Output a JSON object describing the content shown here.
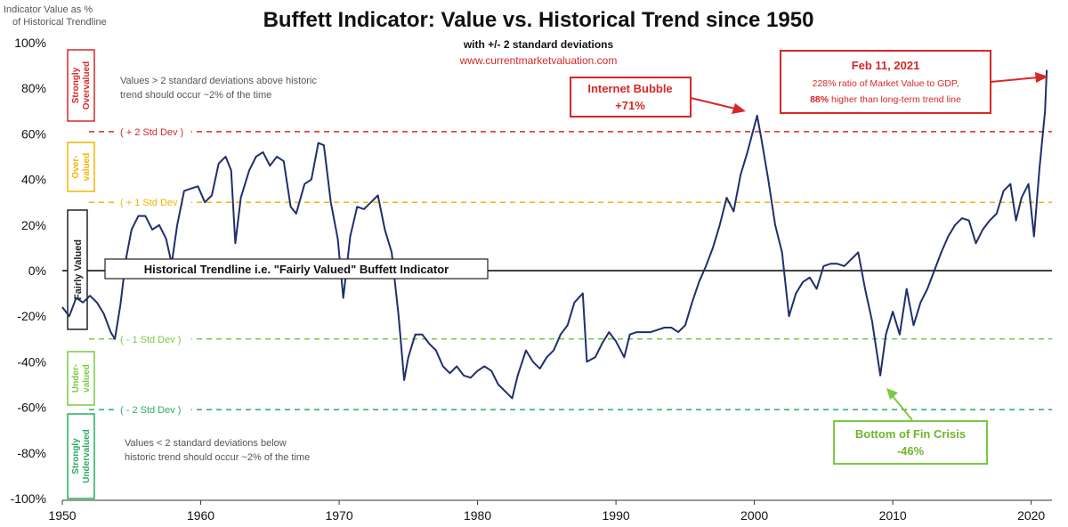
{
  "chart_data": {
    "type": "line",
    "title": "Buffett Indicator: Value vs. Historical Trend since 1950",
    "subtitle": "with +/- 2 standard deviations",
    "source": "www.currentmarketvaluation.com",
    "ylabel_line1": "Indicator Value as %",
    "ylabel_line2": "of Historical Trendline",
    "xlim": [
      1950,
      2021.5
    ],
    "ylim": [
      -100,
      100
    ],
    "x_ticks": [
      1950,
      1960,
      1970,
      1980,
      1990,
      2000,
      2010,
      2020
    ],
    "y_ticks": [
      {
        "value": 100,
        "label": "100%"
      },
      {
        "value": 80,
        "label": "80%"
      },
      {
        "value": 60,
        "label": "60%"
      },
      {
        "value": 40,
        "label": "40%"
      },
      {
        "value": 20,
        "label": "20%"
      },
      {
        "value": 0,
        "label": "0%"
      },
      {
        "value": -20,
        "label": "-20%"
      },
      {
        "value": -40,
        "label": "-40%"
      },
      {
        "value": -60,
        "label": "-60%"
      },
      {
        "value": -80,
        "label": "-80%"
      },
      {
        "value": -100,
        "label": "-100%"
      }
    ],
    "series": [
      {
        "color": "#1f2f6e",
        "points": [
          [
            1950.0,
            -16
          ],
          [
            1950.5,
            -20
          ],
          [
            1951.0,
            -12
          ],
          [
            1951.5,
            -14
          ],
          [
            1952.0,
            -11
          ],
          [
            1952.5,
            -14
          ],
          [
            1953.0,
            -19
          ],
          [
            1953.5,
            -27
          ],
          [
            1953.8,
            -30
          ],
          [
            1954.2,
            -15
          ],
          [
            1954.6,
            5
          ],
          [
            1955.0,
            18
          ],
          [
            1955.5,
            24
          ],
          [
            1956.0,
            24
          ],
          [
            1956.5,
            18
          ],
          [
            1957.0,
            20
          ],
          [
            1957.5,
            14
          ],
          [
            1957.9,
            3
          ],
          [
            1958.3,
            20
          ],
          [
            1958.8,
            35
          ],
          [
            1959.3,
            36
          ],
          [
            1959.8,
            37
          ],
          [
            1960.3,
            30
          ],
          [
            1960.8,
            33
          ],
          [
            1961.3,
            47
          ],
          [
            1961.8,
            50
          ],
          [
            1962.2,
            44
          ],
          [
            1962.5,
            12
          ],
          [
            1962.9,
            32
          ],
          [
            1963.5,
            44
          ],
          [
            1964.0,
            50
          ],
          [
            1964.5,
            52
          ],
          [
            1965.0,
            46
          ],
          [
            1965.5,
            50
          ],
          [
            1966.0,
            48
          ],
          [
            1966.5,
            28
          ],
          [
            1966.9,
            25
          ],
          [
            1967.5,
            38
          ],
          [
            1968.0,
            40
          ],
          [
            1968.5,
            56
          ],
          [
            1968.9,
            55
          ],
          [
            1969.4,
            30
          ],
          [
            1969.9,
            14
          ],
          [
            1970.3,
            -12
          ],
          [
            1970.8,
            15
          ],
          [
            1971.3,
            28
          ],
          [
            1971.8,
            27
          ],
          [
            1972.3,
            30
          ],
          [
            1972.8,
            33
          ],
          [
            1973.3,
            18
          ],
          [
            1973.8,
            8
          ],
          [
            1974.3,
            -20
          ],
          [
            1974.7,
            -48
          ],
          [
            1975.0,
            -38
          ],
          [
            1975.5,
            -28
          ],
          [
            1976.0,
            -28
          ],
          [
            1976.5,
            -32
          ],
          [
            1977.0,
            -35
          ],
          [
            1977.5,
            -42
          ],
          [
            1978.0,
            -45
          ],
          [
            1978.5,
            -42
          ],
          [
            1979.0,
            -46
          ],
          [
            1979.5,
            -47
          ],
          [
            1980.0,
            -44
          ],
          [
            1980.5,
            -42
          ],
          [
            1981.0,
            -44
          ],
          [
            1981.5,
            -50
          ],
          [
            1982.0,
            -53
          ],
          [
            1982.5,
            -56
          ],
          [
            1982.9,
            -46
          ],
          [
            1983.5,
            -35
          ],
          [
            1984.0,
            -40
          ],
          [
            1984.5,
            -43
          ],
          [
            1985.0,
            -38
          ],
          [
            1985.5,
            -35
          ],
          [
            1986.0,
            -28
          ],
          [
            1986.5,
            -24
          ],
          [
            1987.0,
            -14
          ],
          [
            1987.6,
            -10
          ],
          [
            1987.9,
            -40
          ],
          [
            1988.5,
            -38
          ],
          [
            1989.0,
            -32
          ],
          [
            1989.5,
            -27
          ],
          [
            1990.0,
            -31
          ],
          [
            1990.6,
            -38
          ],
          [
            1991.0,
            -28
          ],
          [
            1991.5,
            -27
          ],
          [
            1992.0,
            -27
          ],
          [
            1992.5,
            -27
          ],
          [
            1993.0,
            -26
          ],
          [
            1993.5,
            -25
          ],
          [
            1994.0,
            -25
          ],
          [
            1994.5,
            -27
          ],
          [
            1995.0,
            -24
          ],
          [
            1995.5,
            -14
          ],
          [
            1996.0,
            -5
          ],
          [
            1996.5,
            2
          ],
          [
            1997.0,
            10
          ],
          [
            1997.5,
            20
          ],
          [
            1998.0,
            32
          ],
          [
            1998.5,
            26
          ],
          [
            1999.0,
            42
          ],
          [
            1999.5,
            52
          ],
          [
            2000.2,
            68
          ],
          [
            2000.5,
            58
          ],
          [
            2001.0,
            40
          ],
          [
            2001.5,
            20
          ],
          [
            2002.0,
            8
          ],
          [
            2002.5,
            -20
          ],
          [
            2003.0,
            -10
          ],
          [
            2003.5,
            -5
          ],
          [
            2004.0,
            -3
          ],
          [
            2004.5,
            -8
          ],
          [
            2005.0,
            2
          ],
          [
            2005.5,
            3
          ],
          [
            2006.0,
            3
          ],
          [
            2006.5,
            2
          ],
          [
            2007.0,
            5
          ],
          [
            2007.5,
            8
          ],
          [
            2008.0,
            -8
          ],
          [
            2008.5,
            -22
          ],
          [
            2009.1,
            -46
          ],
          [
            2009.5,
            -28
          ],
          [
            2010.0,
            -18
          ],
          [
            2010.5,
            -28
          ],
          [
            2011.0,
            -8
          ],
          [
            2011.5,
            -24
          ],
          [
            2012.0,
            -14
          ],
          [
            2012.5,
            -8
          ],
          [
            2013.0,
            0
          ],
          [
            2013.5,
            8
          ],
          [
            2014.0,
            15
          ],
          [
            2014.5,
            20
          ],
          [
            2015.0,
            23
          ],
          [
            2015.5,
            22
          ],
          [
            2016.0,
            12
          ],
          [
            2016.5,
            18
          ],
          [
            2017.0,
            22
          ],
          [
            2017.5,
            25
          ],
          [
            2018.0,
            35
          ],
          [
            2018.5,
            38
          ],
          [
            2018.9,
            22
          ],
          [
            2019.3,
            32
          ],
          [
            2019.8,
            38
          ],
          [
            2020.2,
            15
          ],
          [
            2020.6,
            45
          ],
          [
            2021.0,
            70
          ],
          [
            2021.12,
            88
          ]
        ]
      }
    ],
    "reference_lines": [
      {
        "value": 61,
        "label": "( + 2 Std Dev )",
        "color": "#d62828",
        "dashed": true
      },
      {
        "value": 30,
        "label": "( + 1 Std Dev )",
        "color": "#f4b400",
        "dashed": true
      },
      {
        "value": 0,
        "label": "",
        "color": "#000000",
        "dashed": false
      },
      {
        "value": -30,
        "label": "( - 1 Std Dev )",
        "color": "#7ac943",
        "dashed": true
      },
      {
        "value": -61,
        "label": "( - 2 Std Dev )",
        "color": "#27ae60",
        "dashed": true
      }
    ],
    "zones": [
      {
        "label_line1": "Strongly",
        "label_line2": "Overvalued",
        "color": "#d62828"
      },
      {
        "label_line1": "Over-",
        "label_line2": "valued",
        "color": "#f4b400"
      },
      {
        "label_line1": "Fairly Valued",
        "label_line2": "",
        "color": "#222222"
      },
      {
        "label_line1": "Under-",
        "label_line2": "valued",
        "color": "#7ac943"
      },
      {
        "label_line1": "Strongly",
        "label_line2": "Undervalued",
        "color": "#27ae60"
      }
    ],
    "annotations": {
      "top_note_line1": "Values > 2 standard deviations above historic",
      "top_note_line2": "trend should occur ~2% of the time",
      "bottom_note_line1": "Values < 2 standard deviations below",
      "bottom_note_line2": "historic trend should occur ~2% of the time",
      "trend_label": "Historical Trendline i.e. \"Fairly Valued\" Buffett Indicator",
      "internet_bubble_line1": "Internet Bubble",
      "internet_bubble_line2": "+71%",
      "feb_title": "Feb 11, 2021",
      "feb_line1": "228% ratio of Market Value to GDP,",
      "feb_line2_bold": "88%",
      "feb_line2_rest": " higher than long-term trend line",
      "fin_crisis_line1": "Bottom of Fin Crisis",
      "fin_crisis_line2": "-46%"
    },
    "colors": {
      "line": "#1f2f6e",
      "red": "#d62828",
      "yellow": "#f4b400",
      "lightgreen": "#7ac943",
      "green": "#27ae60",
      "text": "#111111",
      "muted": "#555555"
    }
  }
}
